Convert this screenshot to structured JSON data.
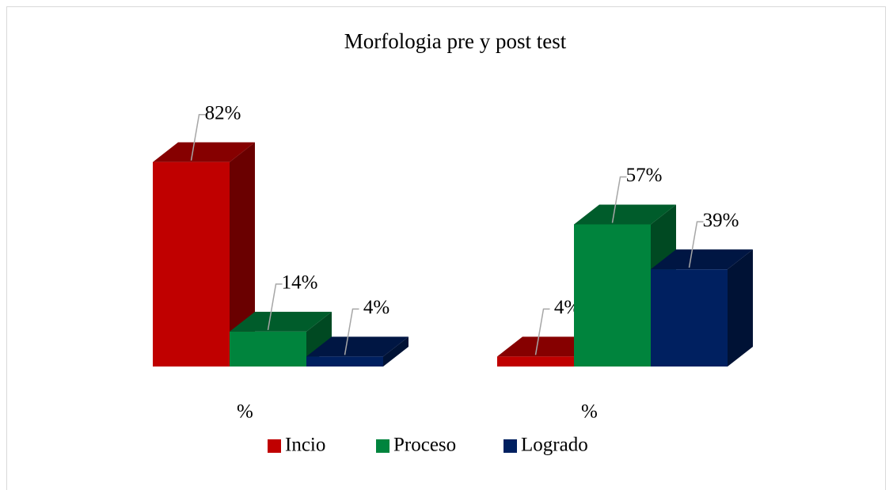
{
  "chart_data": {
    "type": "bar3d",
    "title": "Morfologia pre y post test",
    "categories": [
      "%",
      "%"
    ],
    "series": [
      {
        "name": "Incio",
        "color": "#c00000",
        "values": [
          82,
          4
        ],
        "value_labels": [
          "82%",
          "4%"
        ]
      },
      {
        "name": "Proceso",
        "color": "#00843d",
        "values": [
          14,
          57
        ],
        "value_labels": [
          "14%",
          "57%"
        ]
      },
      {
        "name": "Logrado",
        "color": "#002060",
        "values": [
          4,
          39
        ],
        "value_labels": [
          "4%",
          "39%"
        ]
      }
    ],
    "legend": "bottom"
  }
}
